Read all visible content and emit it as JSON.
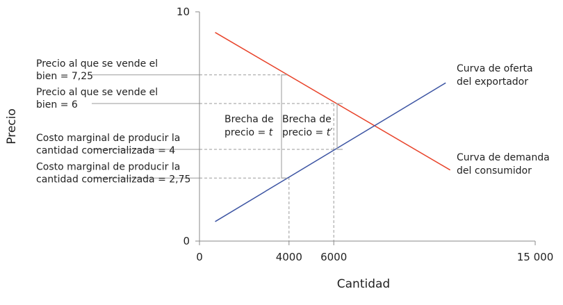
{
  "chart_data": {
    "type": "line",
    "xlabel": "Cantidad",
    "ylabel": "Precio",
    "xlim": [
      0,
      15000
    ],
    "ylim": [
      0,
      10
    ],
    "x_ticks": [
      {
        "value": 0,
        "label": "0"
      },
      {
        "value": 4000,
        "label": "4000"
      },
      {
        "value": 6000,
        "label": "6000"
      },
      {
        "value": 15000,
        "label": "15 000"
      }
    ],
    "y_ticks": [
      {
        "value": 0,
        "label": "0"
      },
      {
        "value": 10,
        "label": "10"
      }
    ],
    "series": [
      {
        "name": "demand",
        "color": "#e8432a",
        "points": [
          [
            700,
            9.1
          ],
          [
            11200,
            3.1
          ]
        ]
      },
      {
        "name": "supply",
        "color": "#3d55a3",
        "points": [
          [
            700,
            0.85
          ],
          [
            11000,
            6.9
          ]
        ]
      }
    ],
    "guides": {
      "horizontal": [
        7.25,
        6,
        4,
        2.75
      ],
      "vertical": [
        4000,
        6000
      ],
      "color": "#9a9a9a"
    },
    "annotations": {
      "left": [
        {
          "y": 7.25,
          "lines": [
            "Precio al que se vende el",
            "bien = 7,25"
          ]
        },
        {
          "y": 6,
          "lines": [
            "Precio al que se vende el",
            "bien = 6"
          ]
        },
        {
          "y": 4,
          "lines": [
            "Costo marginal de producir la",
            "cantidad comercializada = 4"
          ]
        },
        {
          "y": 2.75,
          "lines": [
            "Costo marginal de producir la",
            "cantidad comercializada = 2,75"
          ]
        }
      ],
      "supply_label": [
        "Curva de oferta",
        "del exportador"
      ],
      "demand_label": [
        "Curva de demanda",
        "del consumidor"
      ],
      "brackets": [
        {
          "from": 2.75,
          "to": 7.25,
          "lines": [
            "Brecha de",
            "precio = "
          ],
          "symbol": "t"
        },
        {
          "from": 4,
          "to": 6,
          "lines": [
            "Brecha de",
            "precio = "
          ],
          "symbol": "t′"
        }
      ]
    }
  }
}
